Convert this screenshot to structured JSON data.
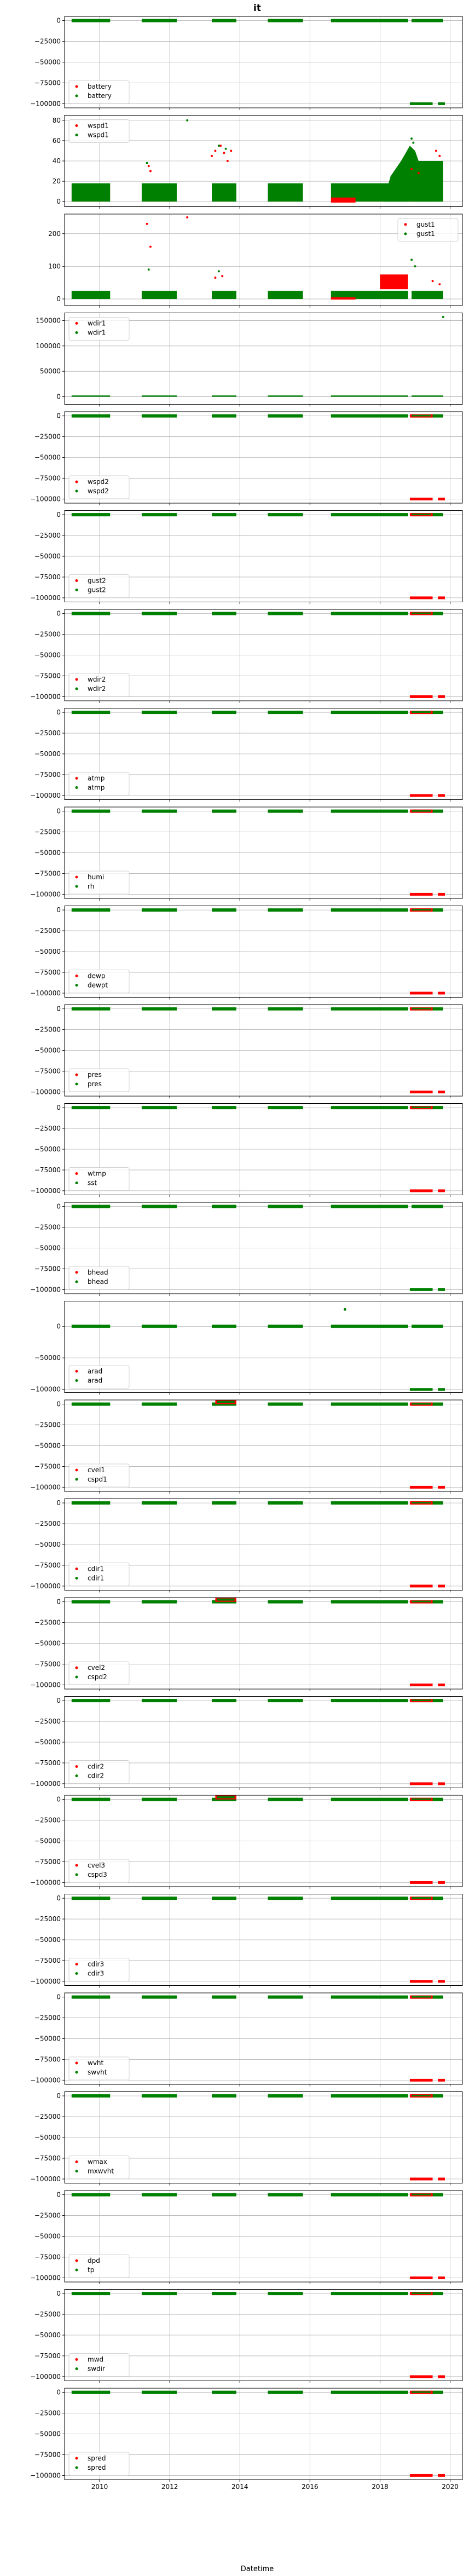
{
  "title": "it",
  "xlabel": "Datetime",
  "colors": {
    "red": "#ff0000",
    "green": "#008000",
    "grid": "#b0b0b0"
  },
  "x_ticks": [
    "2010",
    "2012",
    "2014",
    "2016",
    "2018",
    "2020"
  ],
  "green_segments": [
    [
      2009.2,
      2010.3
    ],
    [
      2011.2,
      2012.2
    ],
    [
      2013.2,
      2013.9
    ],
    [
      2014.8,
      2015.8
    ],
    [
      2016.6,
      2018.8
    ],
    [
      2018.9,
      2019.8
    ]
  ],
  "chart_data": [
    {
      "type": "scatter",
      "legend": [
        "battery",
        "battery"
      ],
      "ylim": [
        -105000,
        5000
      ],
      "yticks": [
        0,
        -25000,
        -50000,
        -75000,
        -100000
      ],
      "ytick_labels": [
        "0",
        "−25000",
        "−50000",
        "−75000",
        "−100000"
      ],
      "legend_loc": "lower-left",
      "sentinel_green": true,
      "red_blips": []
    },
    {
      "type": "scatter",
      "legend": [
        "wspd1",
        "wspd1"
      ],
      "ylim": [
        -5,
        85
      ],
      "yticks": [
        0,
        20,
        40,
        60,
        80
      ],
      "ytick_labels": [
        "0",
        "20",
        "40",
        "60",
        "80"
      ],
      "legend_loc": "upper-left",
      "profile": "wspd",
      "red_points": [
        [
          2011.4,
          35
        ],
        [
          2011.45,
          30
        ],
        [
          2013.2,
          45
        ],
        [
          2013.3,
          50
        ],
        [
          2013.45,
          55
        ],
        [
          2013.55,
          48
        ],
        [
          2013.65,
          40
        ],
        [
          2013.75,
          50
        ],
        [
          2019.6,
          50
        ],
        [
          2019.7,
          45
        ],
        [
          2018.9,
          32
        ],
        [
          2019.1,
          28
        ]
      ],
      "black_points": [
        [
          2012.5,
          80
        ],
        [
          2011.35,
          38
        ],
        [
          2013.4,
          55
        ],
        [
          2013.6,
          52
        ],
        [
          2018.9,
          62
        ],
        [
          2018.95,
          58
        ]
      ]
    },
    {
      "type": "scatter",
      "legend": [
        "gust1",
        "gust1"
      ],
      "ylim": [
        -20,
        260
      ],
      "yticks": [
        0,
        100,
        200
      ],
      "ytick_labels": [
        "0",
        "100",
        "200"
      ],
      "legend_loc": "upper-right",
      "profile": "gust",
      "red_points": [
        [
          2011.35,
          230
        ],
        [
          2011.45,
          160
        ],
        [
          2012.5,
          250
        ],
        [
          2013.3,
          65
        ],
        [
          2013.5,
          70
        ],
        [
          2019.5,
          55
        ],
        [
          2019.7,
          45
        ]
      ],
      "black_points": [
        [
          2011.4,
          90
        ],
        [
          2013.4,
          85
        ],
        [
          2018.9,
          120
        ],
        [
          2019.0,
          100
        ]
      ]
    },
    {
      "type": "scatter",
      "legend": [
        "wdir1",
        "wdir1"
      ],
      "ylim": [
        -15000,
        165000
      ],
      "yticks": [
        0,
        50000,
        100000,
        150000
      ],
      "ytick_labels": [
        "0",
        "50000",
        "100000",
        "150000"
      ],
      "legend_loc": "upper-left",
      "profile": "wdir",
      "red_points": [],
      "black_points": [
        [
          2019.8,
          157000
        ]
      ]
    },
    {
      "type": "scatter",
      "legend": [
        "wspd2",
        "wspd2"
      ],
      "ylim": [
        -105000,
        5000
      ],
      "yticks": [
        0,
        -25000,
        -50000,
        -75000,
        -100000
      ],
      "ytick_labels": [
        "0",
        "−25000",
        "−50000",
        "−75000",
        "−100000"
      ],
      "legend_loc": "lower-left",
      "sentinel_green": false
    },
    {
      "type": "scatter",
      "legend": [
        "gust2",
        "gust2"
      ],
      "ylim": [
        -105000,
        5000
      ],
      "yticks": [
        0,
        -25000,
        -50000,
        -75000,
        -100000
      ],
      "ytick_labels": [
        "0",
        "−25000",
        "−50000",
        "−75000",
        "−100000"
      ],
      "legend_loc": "lower-left",
      "sentinel_green": false
    },
    {
      "type": "scatter",
      "legend": [
        "wdir2",
        "wdir2"
      ],
      "ylim": [
        -105000,
        5000
      ],
      "yticks": [
        0,
        -25000,
        -50000,
        -75000,
        -100000
      ],
      "ytick_labels": [
        "0",
        "−25000",
        "−50000",
        "−75000",
        "−100000"
      ],
      "legend_loc": "lower-left",
      "sentinel_green": false
    },
    {
      "type": "scatter",
      "legend": [
        "atmp",
        "atmp"
      ],
      "ylim": [
        -105000,
        5000
      ],
      "yticks": [
        0,
        -25000,
        -50000,
        -75000,
        -100000
      ],
      "ytick_labels": [
        "0",
        "−25000",
        "−50000",
        "−75000",
        "−100000"
      ],
      "legend_loc": "lower-left",
      "sentinel_green": false
    },
    {
      "type": "scatter",
      "legend": [
        "humi",
        "rh"
      ],
      "ylim": [
        -105000,
        5000
      ],
      "yticks": [
        0,
        -25000,
        -50000,
        -75000,
        -100000
      ],
      "ytick_labels": [
        "0",
        "−25000",
        "−50000",
        "−75000",
        "−100000"
      ],
      "legend_loc": "lower-left",
      "sentinel_green": false
    },
    {
      "type": "scatter",
      "legend": [
        "dewp",
        "dewpt"
      ],
      "ylim": [
        -105000,
        5000
      ],
      "yticks": [
        0,
        -25000,
        -50000,
        -75000,
        -100000
      ],
      "ytick_labels": [
        "0",
        "−25000",
        "−50000",
        "−75000",
        "−100000"
      ],
      "legend_loc": "lower-left",
      "sentinel_green": false
    },
    {
      "type": "scatter",
      "legend": [
        "pres",
        "pres"
      ],
      "ylim": [
        -105000,
        5000
      ],
      "yticks": [
        0,
        -25000,
        -50000,
        -75000,
        -100000
      ],
      "ytick_labels": [
        "0",
        "−25000",
        "−50000",
        "−75000",
        "−100000"
      ],
      "legend_loc": "lower-left",
      "sentinel_green": false
    },
    {
      "type": "scatter",
      "legend": [
        "wtmp",
        "sst"
      ],
      "ylim": [
        -105000,
        5000
      ],
      "yticks": [
        0,
        -25000,
        -50000,
        -75000,
        -100000
      ],
      "ytick_labels": [
        "0",
        "−25000",
        "−50000",
        "−75000",
        "−100000"
      ],
      "legend_loc": "lower-left",
      "sentinel_green": false
    },
    {
      "type": "scatter",
      "legend": [
        "bhead",
        "bhead"
      ],
      "ylim": [
        -105000,
        5000
      ],
      "yticks": [
        0,
        -25000,
        -50000,
        -75000,
        -100000
      ],
      "ytick_labels": [
        "0",
        "−25000",
        "−50000",
        "−75000",
        "−100000"
      ],
      "legend_loc": "lower-left",
      "sentinel_green": true
    },
    {
      "type": "scatter",
      "legend": [
        "arad",
        "arad"
      ],
      "ylim": [
        -105000,
        40000
      ],
      "yticks": [
        0,
        -50000,
        -100000
      ],
      "ytick_labels": [
        "0",
        "−50000",
        "−100000"
      ],
      "legend_loc": "lower-left",
      "sentinel_green": true,
      "extra_green": [
        [
          2017.0,
          27000
        ]
      ]
    },
    {
      "type": "scatter",
      "legend": [
        "cvel1",
        "cspd1"
      ],
      "ylim": [
        -105000,
        5000
      ],
      "yticks": [
        0,
        -25000,
        -50000,
        -75000,
        -100000
      ],
      "ytick_labels": [
        "0",
        "−25000",
        "−50000",
        "−75000",
        "−100000"
      ],
      "legend_loc": "lower-left",
      "sentinel_green": false,
      "red_cluster": true
    },
    {
      "type": "scatter",
      "legend": [
        "cdir1",
        "cdir1"
      ],
      "ylim": [
        -105000,
        5000
      ],
      "yticks": [
        0,
        -25000,
        -50000,
        -75000,
        -100000
      ],
      "ytick_labels": [
        "0",
        "−25000",
        "−50000",
        "−75000",
        "−100000"
      ],
      "legend_loc": "lower-left",
      "sentinel_green": false
    },
    {
      "type": "scatter",
      "legend": [
        "cvel2",
        "cspd2"
      ],
      "ylim": [
        -105000,
        5000
      ],
      "yticks": [
        0,
        -25000,
        -50000,
        -75000,
        -100000
      ],
      "ytick_labels": [
        "0",
        "−25000",
        "−50000",
        "−75000",
        "−100000"
      ],
      "legend_loc": "lower-left",
      "sentinel_green": false,
      "red_cluster": true
    },
    {
      "type": "scatter",
      "legend": [
        "cdir2",
        "cdir2"
      ],
      "ylim": [
        -105000,
        5000
      ],
      "yticks": [
        0,
        -25000,
        -50000,
        -75000,
        -100000
      ],
      "ytick_labels": [
        "0",
        "−25000",
        "−50000",
        "−75000",
        "−100000"
      ],
      "legend_loc": "lower-left",
      "sentinel_green": false
    },
    {
      "type": "scatter",
      "legend": [
        "cvel3",
        "cspd3"
      ],
      "ylim": [
        -105000,
        5000
      ],
      "yticks": [
        0,
        -25000,
        -50000,
        -75000,
        -100000
      ],
      "ytick_labels": [
        "0",
        "−25000",
        "−50000",
        "−75000",
        "−100000"
      ],
      "legend_loc": "lower-left",
      "sentinel_green": false,
      "red_cluster": true
    },
    {
      "type": "scatter",
      "legend": [
        "cdir3",
        "cdir3"
      ],
      "ylim": [
        -105000,
        5000
      ],
      "yticks": [
        0,
        -25000,
        -50000,
        -75000,
        -100000
      ],
      "ytick_labels": [
        "0",
        "−25000",
        "−50000",
        "−75000",
        "−100000"
      ],
      "legend_loc": "lower-left",
      "sentinel_green": false
    },
    {
      "type": "scatter",
      "legend": [
        "wvht",
        "swvht"
      ],
      "ylim": [
        -105000,
        5000
      ],
      "yticks": [
        0,
        -25000,
        -50000,
        -75000,
        -100000
      ],
      "ytick_labels": [
        "0",
        "−25000",
        "−50000",
        "−75000",
        "−100000"
      ],
      "legend_loc": "lower-left",
      "sentinel_green": false
    },
    {
      "type": "scatter",
      "legend": [
        "wmax",
        "mxwvht"
      ],
      "ylim": [
        -105000,
        5000
      ],
      "yticks": [
        0,
        -25000,
        -50000,
        -75000,
        -100000
      ],
      "ytick_labels": [
        "0",
        "−25000",
        "−50000",
        "−75000",
        "−100000"
      ],
      "legend_loc": "lower-left",
      "sentinel_green": false
    },
    {
      "type": "scatter",
      "legend": [
        "dpd",
        "tp"
      ],
      "ylim": [
        -105000,
        5000
      ],
      "yticks": [
        0,
        -25000,
        -50000,
        -75000,
        -100000
      ],
      "ytick_labels": [
        "0",
        "−25000",
        "−50000",
        "−75000",
        "−100000"
      ],
      "legend_loc": "lower-left",
      "sentinel_green": false
    },
    {
      "type": "scatter",
      "legend": [
        "mwd",
        "swdir"
      ],
      "ylim": [
        -105000,
        5000
      ],
      "yticks": [
        0,
        -25000,
        -50000,
        -75000,
        -100000
      ],
      "ytick_labels": [
        "0",
        "−25000",
        "−50000",
        "−75000",
        "−100000"
      ],
      "legend_loc": "lower-left",
      "sentinel_green": false
    },
    {
      "type": "scatter",
      "legend": [
        "spred",
        "spred"
      ],
      "ylim": [
        -105000,
        5000
      ],
      "yticks": [
        0,
        -25000,
        -50000,
        -75000,
        -100000
      ],
      "ytick_labels": [
        "0",
        "−25000",
        "−50000",
        "−75000",
        "−100000"
      ],
      "legend_loc": "lower-left",
      "sentinel_green": false
    }
  ]
}
